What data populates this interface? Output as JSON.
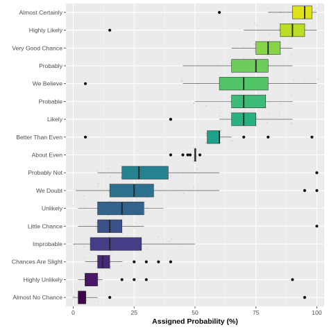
{
  "chart_data": {
    "type": "boxplot",
    "title": "",
    "xlabel": "Assigned Probability (%)",
    "ylabel": "",
    "xlim": [
      -3,
      103
    ],
    "x_ticks": [
      0,
      25,
      50,
      75,
      100
    ],
    "grid": true,
    "legend": "none",
    "colors": {
      "panel_bg": "#ebebeb",
      "grid_major": "#ffffff",
      "box_stroke": "#333333",
      "whisker": "#333333",
      "outlier": "#111111",
      "jitter": "#bdbdbd"
    },
    "categories": [
      {
        "label": "Almost Certainly",
        "q1": 90,
        "median": 95,
        "q3": 98,
        "whisker_low": 80,
        "whisker_high": 100,
        "outliers": [
          60
        ],
        "color": "#dde318"
      },
      {
        "label": "Highly Likely",
        "q1": 85,
        "median": 90,
        "q3": 95,
        "whisker_low": 70,
        "whisker_high": 100,
        "outliers": [
          15
        ],
        "color": "#bade28"
      },
      {
        "label": "Very Good Chance",
        "q1": 75,
        "median": 80,
        "q3": 85,
        "whisker_low": 65,
        "whisker_high": 90,
        "outliers": [],
        "color": "#86d549"
      },
      {
        "label": "Probably",
        "q1": 65,
        "median": 75,
        "q3": 80,
        "whisker_low": 45,
        "whisker_high": 90,
        "outliers": [],
        "color": "#6ccd5a"
      },
      {
        "label": "We Believe",
        "q1": 60,
        "median": 70,
        "q3": 80,
        "whisker_low": 45,
        "whisker_high": 100,
        "outliers": [
          5
        ],
        "color": "#52c569"
      },
      {
        "label": "Probable",
        "q1": 65,
        "median": 70,
        "q3": 79,
        "whisker_low": 50,
        "whisker_high": 90,
        "outliers": [],
        "color": "#3bbb75"
      },
      {
        "label": "Likely",
        "q1": 65,
        "median": 70,
        "q3": 75,
        "whisker_low": 60,
        "whisker_high": 90,
        "outliers": [
          40
        ],
        "color": "#2ab07f"
      },
      {
        "label": "Better Than Even",
        "q1": 55,
        "median": 60,
        "q3": 60,
        "whisker_low": 55,
        "whisker_high": 65,
        "outliers": [
          5,
          70,
          80,
          98
        ],
        "color": "#1fa088"
      },
      {
        "label": "About Even",
        "q1": 50,
        "median": 50,
        "q3": 50,
        "whisker_low": 50,
        "whisker_high": 50,
        "outliers": [
          40,
          45,
          47,
          48,
          52
        ],
        "color": "#21908d"
      },
      {
        "label": "Probably Not",
        "q1": 20,
        "median": 27,
        "q3": 39,
        "whisker_low": 10,
        "whisker_high": 60,
        "outliers": [
          100
        ],
        "color": "#26828e"
      },
      {
        "label": "We Doubt",
        "q1": 15,
        "median": 25,
        "q3": 33,
        "whisker_low": 1,
        "whisker_high": 60,
        "outliers": [
          95,
          100
        ],
        "color": "#2c728e"
      },
      {
        "label": "Unlikely",
        "q1": 10,
        "median": 20,
        "q3": 29,
        "whisker_low": 2,
        "whisker_high": 37,
        "outliers": [],
        "color": "#33638d"
      },
      {
        "label": "Little Chance",
        "q1": 10,
        "median": 15,
        "q3": 20,
        "whisker_low": 2,
        "whisker_high": 29,
        "outliers": [
          100
        ],
        "color": "#3b518b"
      },
      {
        "label": "Improbable",
        "q1": 7,
        "median": 15,
        "q3": 28,
        "whisker_low": 0,
        "whisker_high": 50,
        "outliers": [],
        "color": "#433e85"
      },
      {
        "label": "Chances Are Slight",
        "q1": 10,
        "median": 12,
        "q3": 15,
        "whisker_low": 5,
        "whisker_high": 20,
        "outliers": [
          25,
          30,
          35,
          40
        ],
        "color": "#482878"
      },
      {
        "label": "Highly Unlikely",
        "q1": 5,
        "median": 5,
        "q3": 10,
        "whisker_low": 2,
        "whisker_high": 12,
        "outliers": [
          20,
          25,
          30,
          90
        ],
        "color": "#481769"
      },
      {
        "label": "Almost No Chance",
        "q1": 2,
        "median": 5,
        "q3": 5,
        "whisker_low": 0,
        "whisker_high": 10,
        "outliers": [
          15,
          95
        ],
        "color": "#440154"
      }
    ]
  }
}
